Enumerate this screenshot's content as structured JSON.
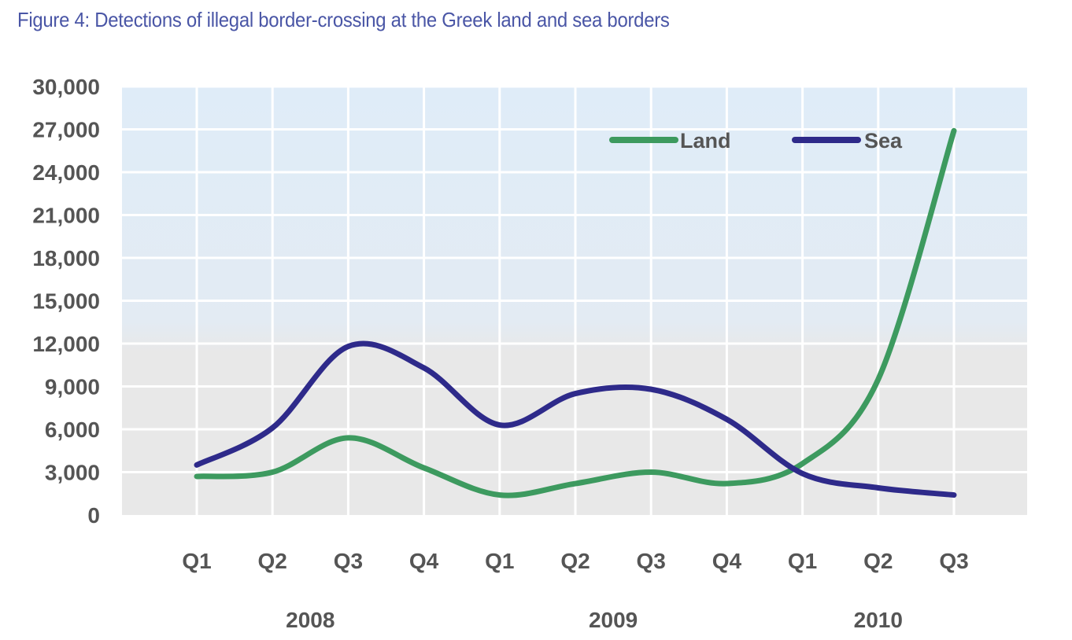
{
  "chart_data": {
    "type": "line",
    "title": "Figure 4: Detections of illegal border-crossing at the Greek land and sea borders",
    "xlabel": "",
    "ylabel": "",
    "ylim": [
      0,
      30000
    ],
    "yticks": [
      "0",
      "3,000",
      "6,000",
      "9,000",
      "12,000",
      "15,000",
      "18,000",
      "21,000",
      "24,000",
      "27,000",
      "30,000"
    ],
    "x": [
      "Q1",
      "Q2",
      "Q3",
      "Q4",
      "Q1",
      "Q2",
      "Q3",
      "Q4",
      "Q1",
      "Q2",
      "Q3"
    ],
    "years": [
      {
        "label": "2008",
        "span": [
          0,
          3
        ]
      },
      {
        "label": "2009",
        "span": [
          4,
          7
        ]
      },
      {
        "label": "2010",
        "span": [
          8,
          10
        ]
      }
    ],
    "grid": true,
    "legend_position": "top-right",
    "series": [
      {
        "name": "Land",
        "color": "#3d9a5f",
        "values": [
          2700,
          3000,
          5400,
          3300,
          1400,
          2200,
          3000,
          2200,
          3600,
          9500,
          26900
        ]
      },
      {
        "name": "Sea",
        "color": "#2e2a8a",
        "values": [
          3500,
          6100,
          11800,
          10300,
          6300,
          8500,
          8800,
          6700,
          2900,
          1900,
          1400
        ]
      }
    ]
  }
}
